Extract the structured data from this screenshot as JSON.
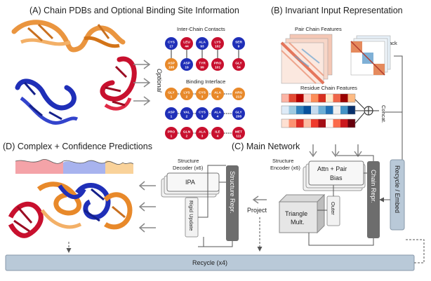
{
  "panels": {
    "a_title": "(A) Chain PDBs and Optional Binding Site Information",
    "b_title": "(B) Invariant Input Representation",
    "c_title": "(C) Main Network",
    "d_title": "(D) Complex + Confidence Predictions"
  },
  "panel_a": {
    "contacts_label": "Inter-Chain Contacts",
    "interface_label": "Binding Interface",
    "optional_label": "Optional",
    "contacts_top": [
      {
        "res": "CYS",
        "num": "17"
      },
      {
        "res": "LEU",
        "num": "44"
      },
      {
        "res": "ALA",
        "num": "93"
      },
      {
        "res": "LYS",
        "num": "102"
      },
      {
        "res": "SER",
        "num": "9"
      }
    ],
    "contacts_bottom": [
      {
        "res": "ASP",
        "num": "188"
      },
      {
        "res": "ASP",
        "num": "19"
      },
      {
        "res": "TYR",
        "num": "99"
      },
      {
        "res": "PRO",
        "num": "101"
      },
      {
        "res": "GLY",
        "num": "54"
      }
    ],
    "interface_rows": [
      [
        {
          "res": "GLY",
          "num": "1"
        },
        {
          "res": "LYS",
          "num": "2"
        },
        {
          "res": "CYS",
          "num": "3"
        },
        {
          "res": "ALA",
          "num": "4"
        },
        {
          "res": "ARG",
          "num": "213"
        }
      ],
      [
        {
          "res": "ASP",
          "num": "1"
        },
        {
          "res": "VAL",
          "num": "2"
        },
        {
          "res": "CYS",
          "num": "3"
        },
        {
          "res": "ALA",
          "num": "4"
        },
        {
          "res": "GLY",
          "num": "208"
        }
      ],
      [
        {
          "res": "PRO",
          "num": "1"
        },
        {
          "res": "GLN",
          "num": "2"
        },
        {
          "res": "ALA",
          "num": "3"
        },
        {
          "res": "ILE",
          "num": "4"
        },
        {
          "res": "MET",
          "num": "111"
        }
      ]
    ]
  },
  "panel_b": {
    "pair_label": "Pair Chain Features",
    "stack_label": "Stack",
    "residue_label": "Residue Chain Features",
    "concat_label": "Concat."
  },
  "panel_c": {
    "encoder_label_1": "Structure",
    "encoder_label_2": "Encoder (x6)",
    "attn_label_1": "Attn +  Pair",
    "attn_label_2": "Bias",
    "chain_repr_label": "Chain Repr.",
    "outer_label": "Outer",
    "triangle_label_1": "Triangle",
    "triangle_label_2": "Mult.",
    "project_label": "Project",
    "recycle_embed_label": "Recycle / Embed"
  },
  "panel_d": {
    "decoder_label_1": "Structure",
    "decoder_label_2": "Decoder (x6)",
    "ipa_label": "IPA",
    "rigid_label": "Rigid Update",
    "structure_repr_label": "Structure Repr."
  },
  "recycle_label": "Recycle (x4)",
  "colors": {
    "red": "#c8102e",
    "orange": "#e8892a",
    "blue": "#1f2fb8",
    "dark_box": "#6d6d6d",
    "recycle_bar": "#b9c9d8",
    "light_box": "#f2f2f2"
  }
}
